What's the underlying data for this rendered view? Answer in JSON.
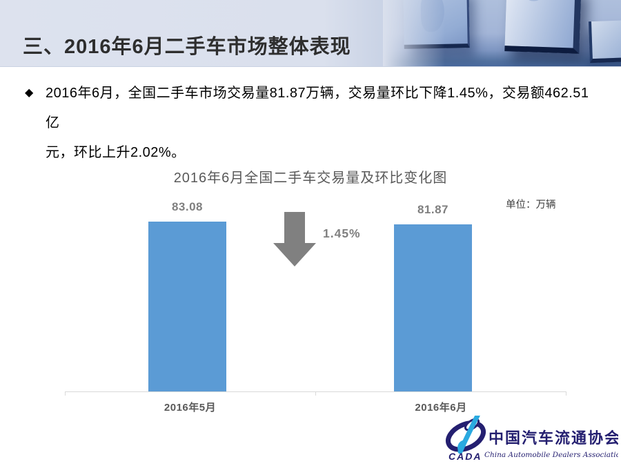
{
  "header": {
    "title": "三、2016年6月二手车市场整体表现"
  },
  "bullet": {
    "marker": "◆",
    "lines": [
      "2016年6月，全国二手车市场交易量81.87万辆，交易量环比下降1.45%，交易额462.51亿",
      "元，环比上升2.02%。"
    ]
  },
  "chart_data": {
    "type": "bar",
    "title": "2016年6月全国二手车交易量及环比变化图",
    "unit_label": "单位：万辆",
    "categories": [
      "2016年5月",
      "2016年6月"
    ],
    "values": [
      83.08,
      81.87
    ],
    "change_label": "1.45%",
    "change_direction": "down",
    "bar_color": "#5b9bd5",
    "arrow_color": "#808080",
    "axis_color": "#d9d9d9",
    "grid": false,
    "legend": false
  },
  "logo": {
    "acronym": "CADA",
    "name_zh": "中国汽车流通协会",
    "name_en": "China Automobile Dealers Association",
    "navy": "#241f70",
    "light_blue": "#2aa9e0"
  }
}
